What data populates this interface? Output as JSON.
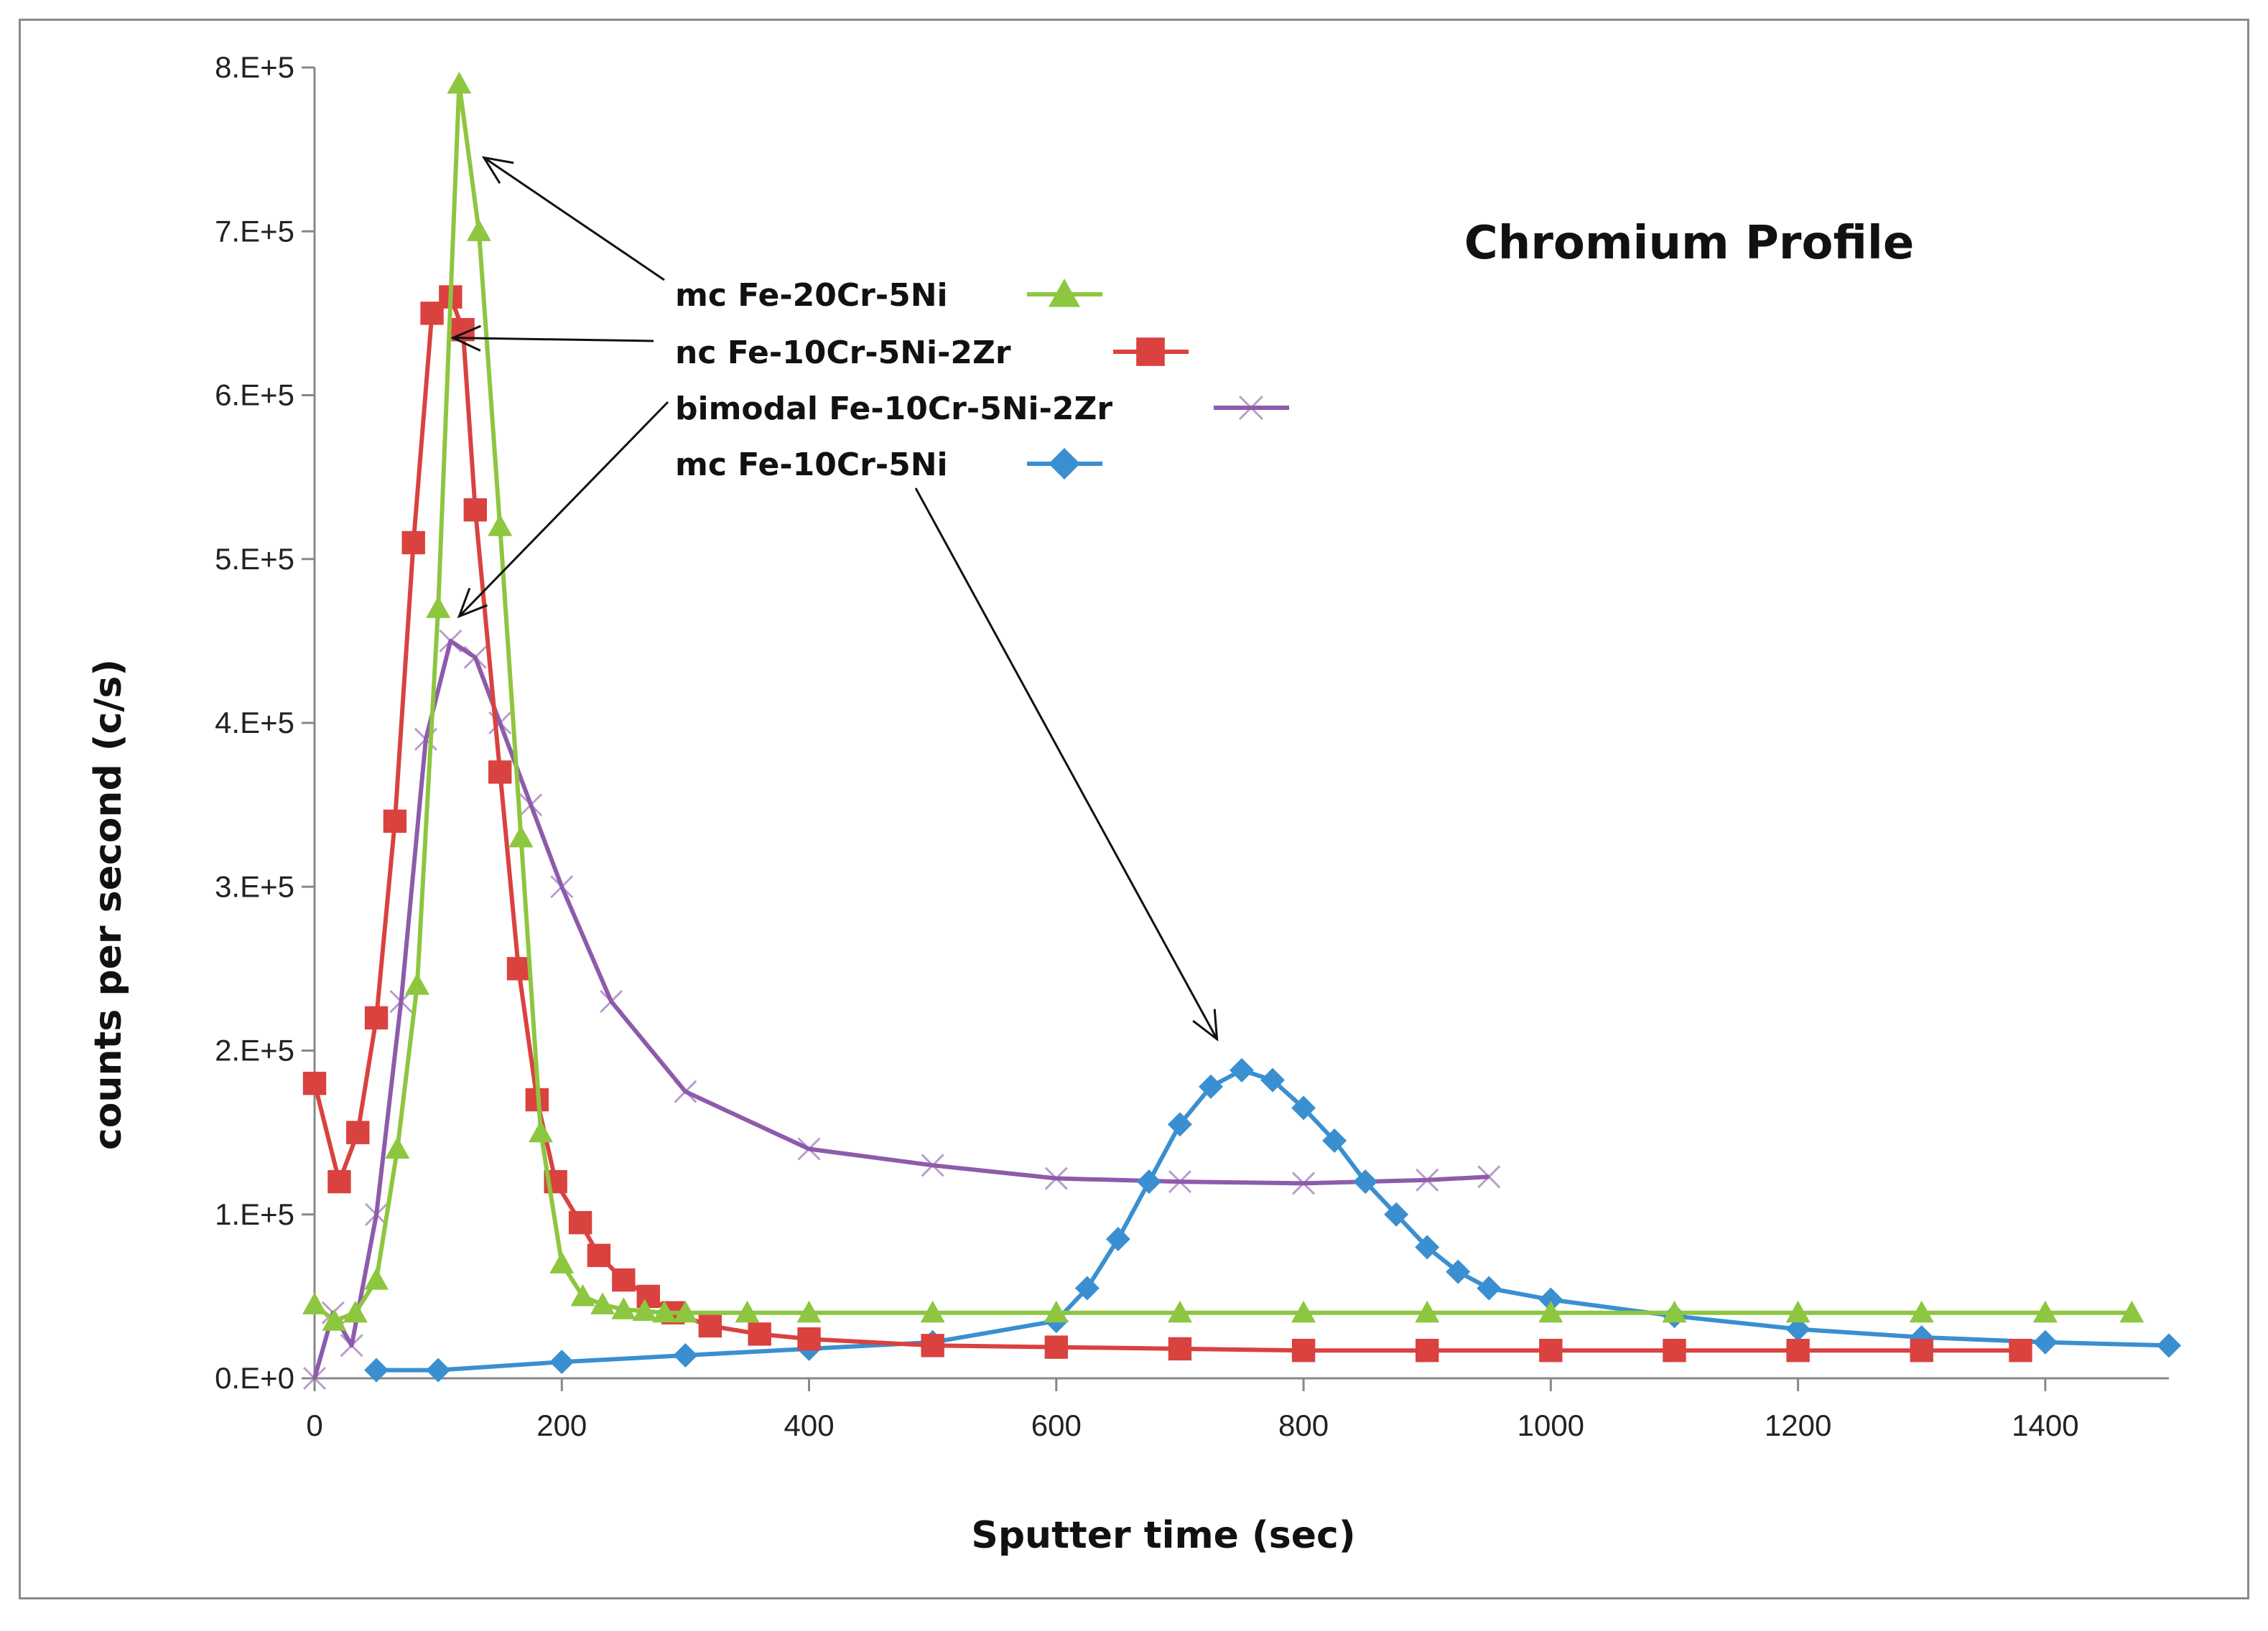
{
  "chart_data": {
    "type": "line",
    "title": "Chromium Profile",
    "xlabel": "Sputter time (sec)",
    "ylabel": "counts per second (c/s)",
    "xlim": [
      0,
      1500
    ],
    "ylim": [
      0,
      800000
    ],
    "x_ticks": [
      0,
      200,
      400,
      600,
      800,
      1000,
      1200,
      1400
    ],
    "x_tick_labels": [
      "0",
      "200",
      "400",
      "600",
      "800",
      "1000",
      "1200",
      "1400"
    ],
    "y_ticks": [
      0,
      100000,
      200000,
      300000,
      400000,
      500000,
      600000,
      700000,
      800000
    ],
    "y_tick_labels": [
      "0.E+0",
      "1.E+5",
      "2.E+5",
      "3.E+5",
      "4.E+5",
      "5.E+5",
      "6.E+5",
      "7.E+5",
      "8.E+5"
    ],
    "grid": false,
    "legend_position": "center-top",
    "series": [
      {
        "name": "mc Fe-20Cr-5Ni",
        "color": "#8dc63f",
        "marker": "triangle",
        "x": [
          0,
          16,
          33,
          50,
          67,
          83,
          100,
          117,
          133,
          150,
          167,
          183,
          200,
          217,
          233,
          250,
          267,
          283,
          300,
          350,
          400,
          500,
          600,
          700,
          800,
          900,
          1000,
          1100,
          1200,
          1300,
          1400,
          1470
        ],
        "y": [
          45000,
          35000,
          40000,
          60000,
          140000,
          240000,
          470000,
          790000,
          700000,
          520000,
          330000,
          150000,
          70000,
          50000,
          45000,
          42000,
          41000,
          40000,
          40000,
          40000,
          40000,
          40000,
          40000,
          40000,
          40000,
          40000,
          40000,
          40000,
          40000,
          40000,
          40000,
          40000
        ]
      },
      {
        "name": "nc Fe-10Cr-5Ni-2Zr",
        "color": "#d9423f",
        "marker": "square",
        "x": [
          0,
          20,
          35,
          50,
          65,
          80,
          95,
          110,
          120,
          130,
          150,
          165,
          180,
          195,
          215,
          230,
          250,
          270,
          290,
          320,
          360,
          400,
          500,
          600,
          700,
          800,
          900,
          1000,
          1100,
          1200,
          1300,
          1380
        ],
        "y": [
          180000,
          120000,
          150000,
          220000,
          340000,
          510000,
          650000,
          660000,
          640000,
          530000,
          370000,
          250000,
          170000,
          120000,
          95000,
          75000,
          60000,
          50000,
          40000,
          32000,
          27000,
          24000,
          20000,
          19000,
          18000,
          17000,
          17000,
          17000,
          17000,
          17000,
          17000,
          17000
        ]
      },
      {
        "name": "bimodal Fe-10Cr-5Ni-2Zr",
        "color": "#8e5bab",
        "marker": "x",
        "x": [
          0,
          15,
          30,
          50,
          70,
          90,
          110,
          130,
          150,
          175,
          200,
          240,
          300,
          400,
          500,
          600,
          700,
          800,
          900,
          950
        ],
        "y": [
          0,
          40000,
          20000,
          100000,
          230000,
          390000,
          450000,
          440000,
          400000,
          350000,
          300000,
          230000,
          175000,
          140000,
          130000,
          122000,
          120000,
          119000,
          121000,
          123000
        ]
      },
      {
        "name": "mc Fe-10Cr-5Ni",
        "color": "#3a8fd0",
        "marker": "diamond",
        "x": [
          50,
          100,
          200,
          300,
          400,
          500,
          600,
          625,
          650,
          675,
          700,
          725,
          750,
          775,
          800,
          825,
          850,
          875,
          900,
          925,
          950,
          1000,
          1100,
          1200,
          1300,
          1400,
          1500
        ],
        "y": [
          5000,
          5000,
          10000,
          14000,
          18000,
          22000,
          35000,
          55000,
          85000,
          120000,
          155000,
          178000,
          188000,
          182000,
          165000,
          145000,
          120000,
          100000,
          80000,
          65000,
          55000,
          48000,
          38000,
          30000,
          25000,
          22000,
          20000
        ]
      }
    ],
    "annotations": [
      {
        "from_legend": "mc Fe-20Cr-5Ni",
        "points_to": [
          137,
          745000
        ]
      },
      {
        "from_legend": "nc Fe-10Cr-5Ni-2Zr",
        "points_to": [
          112,
          635000
        ]
      },
      {
        "from_legend": "bimodal Fe-10Cr-5Ni-2Zr",
        "points_to": [
          117,
          465000
        ]
      },
      {
        "from_legend": "mc Fe-10Cr-5Ni",
        "points_to": [
          730,
          207000
        ]
      }
    ]
  }
}
